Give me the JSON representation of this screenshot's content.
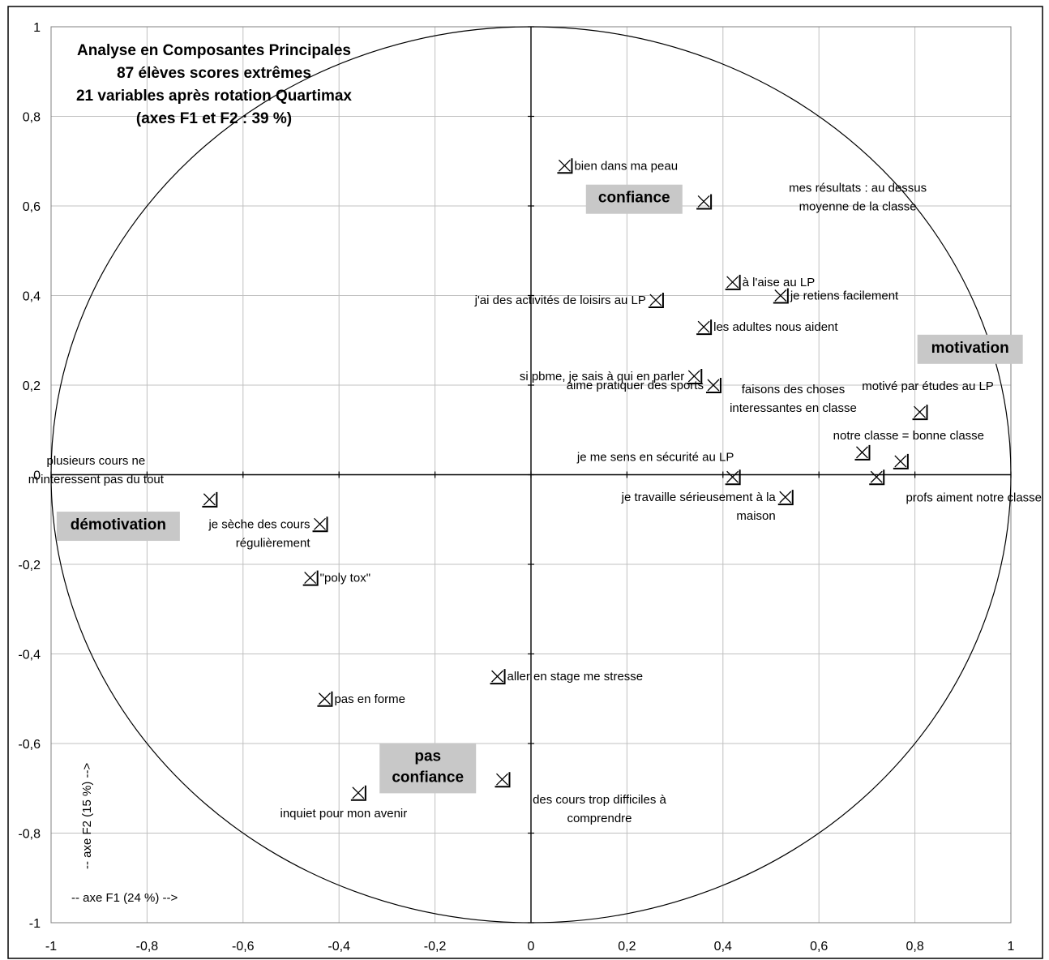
{
  "chart_data": {
    "type": "scatter",
    "title_lines": [
      "Analyse en Composantes Principales",
      "87 élèves scores extrêmes",
      "21 variables après rotation Quartimax",
      "(axes F1 et F2 : 39 %)"
    ],
    "xlabel": "-- axe F1 (24 %) -->",
    "ylabel": "-- axe F2 (15 %) -->",
    "xlim": [
      -1,
      1
    ],
    "ylim": [
      -1,
      1
    ],
    "x_ticks": [
      "-1",
      "-0,8",
      "-0,6",
      "-0,4",
      "-0,2",
      "0",
      "0,2",
      "0,4",
      "0,6",
      "0,8",
      "1"
    ],
    "y_ticks": [
      "1",
      "0,8",
      "0,6",
      "0,4",
      "0,2",
      "0",
      "-0,2",
      "-0,4",
      "-0,6",
      "-0,8",
      "-1"
    ],
    "grid": true,
    "correlation_circle": true,
    "points": [
      {
        "x": 0.07,
        "y": 0.69,
        "lines": [
          "bien dans ma peau"
        ],
        "pos": "right"
      },
      {
        "x": 0.36,
        "y": 0.61,
        "lines": [
          "mes résultats : au dessus",
          "moyenne de la classe"
        ],
        "pos": "right-up"
      },
      {
        "x": 0.42,
        "y": 0.43,
        "lines": [
          "à l'aise au LP"
        ],
        "pos": "right"
      },
      {
        "x": 0.52,
        "y": 0.4,
        "lines": [
          "je retiens facilement"
        ],
        "pos": "right"
      },
      {
        "x": 0.26,
        "y": 0.39,
        "lines": [
          "j'ai des activités de loisirs au LP"
        ],
        "pos": "left"
      },
      {
        "x": 0.36,
        "y": 0.33,
        "lines": [
          "les adultes nous aident"
        ],
        "pos": "right"
      },
      {
        "x": 0.34,
        "y": 0.22,
        "lines": [
          "si pbme, je sais à qui en parler"
        ],
        "pos": "left"
      },
      {
        "x": 0.38,
        "y": 0.2,
        "lines": [
          "aime pratiquer des sports"
        ],
        "pos": "left"
      },
      {
        "x": 0.81,
        "y": 0.14,
        "lines": [
          "motivé par études au LP"
        ],
        "pos": "above"
      },
      {
        "x": 0.69,
        "y": 0.05,
        "lines": [
          "faisons des choses",
          "interessantes en classe"
        ],
        "pos": "far-above-left"
      },
      {
        "x": 0.77,
        "y": 0.03,
        "lines": [
          "notre classe = bonne classe"
        ],
        "pos": "above"
      },
      {
        "x": 0.42,
        "y": -0.005,
        "lines": [
          "je me sens en sécurité au LP"
        ],
        "pos": "above-left"
      },
      {
        "x": 0.53,
        "y": -0.05,
        "lines": [
          "je travaille sérieusement à la",
          "maison"
        ],
        "pos": "left"
      },
      {
        "x": 0.72,
        "y": -0.005,
        "lines": [
          "profs aiment notre classe"
        ],
        "pos": "below-right"
      },
      {
        "x": -0.67,
        "y": -0.055,
        "lines": [
          "plusieurs cours ne",
          "m'interessent pas du tout"
        ],
        "pos": "above-left"
      },
      {
        "x": -0.44,
        "y": -0.11,
        "lines": [
          "je sèche des cours",
          "régulièrement"
        ],
        "pos": "left"
      },
      {
        "x": -0.46,
        "y": -0.23,
        "lines": [
          "\"poly tox\""
        ],
        "pos": "right"
      },
      {
        "x": -0.07,
        "y": -0.45,
        "lines": [
          "aller en stage me stresse"
        ],
        "pos": "right"
      },
      {
        "x": -0.43,
        "y": -0.5,
        "lines": [
          "pas en forme"
        ],
        "pos": "right"
      },
      {
        "x": -0.36,
        "y": -0.71,
        "lines": [
          "inquiet pour mon avenir"
        ],
        "pos": "below"
      },
      {
        "x": -0.06,
        "y": -0.68,
        "lines": [
          "des cours trop difficiles à",
          "comprendre"
        ],
        "pos": "below-right"
      }
    ],
    "categories": [
      {
        "lines": [
          "confiance"
        ],
        "x": 0.215,
        "y": 0.615
      },
      {
        "lines": [
          "motivation"
        ],
        "x": 0.915,
        "y": 0.28
      },
      {
        "lines": [
          "démotivation"
        ],
        "x": -0.86,
        "y": -0.115
      },
      {
        "lines": [
          "pas",
          "confiance"
        ],
        "x": -0.215,
        "y": -0.655
      }
    ],
    "colors": {
      "background": "#ffffff",
      "ink": "#000000",
      "grid": "#c0c0c0",
      "category_box": "#c8c8c8"
    }
  }
}
